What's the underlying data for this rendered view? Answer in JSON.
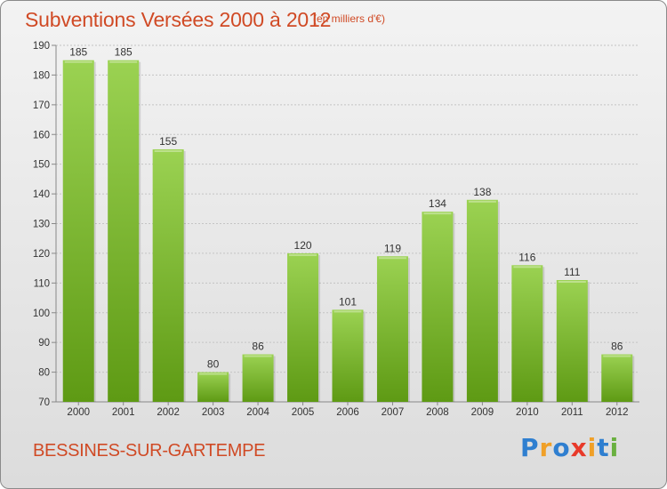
{
  "title": "Subventions Versées 2000 à 2012",
  "subtitle": "(en milliers d'€)",
  "commune": "BESSINES-SUR-GARTEMPE",
  "brand": {
    "letters": [
      "P",
      "r",
      "o",
      "x",
      "i",
      "t",
      "i"
    ],
    "colors": [
      "#2f7fd0",
      "#f0a028",
      "#2f7fd0",
      "#e83a2a",
      "#f0a028",
      "#2f7fd0",
      "#6ab040"
    ]
  },
  "colors": {
    "bar_top": "#9bd252",
    "bar_bottom": "#5e9a14",
    "text": "#d04a25"
  },
  "chart_data": {
    "type": "bar",
    "categories": [
      "2000",
      "2001",
      "2002",
      "2003",
      "2004",
      "2005",
      "2006",
      "2007",
      "2008",
      "2009",
      "2010",
      "2011",
      "2012"
    ],
    "values": [
      185,
      185,
      155,
      80,
      86,
      120,
      101,
      119,
      134,
      138,
      116,
      111,
      86
    ],
    "ylim": [
      70,
      190
    ],
    "yticks": [
      70,
      80,
      90,
      100,
      110,
      120,
      130,
      140,
      150,
      160,
      170,
      180,
      190
    ],
    "grid": true
  }
}
